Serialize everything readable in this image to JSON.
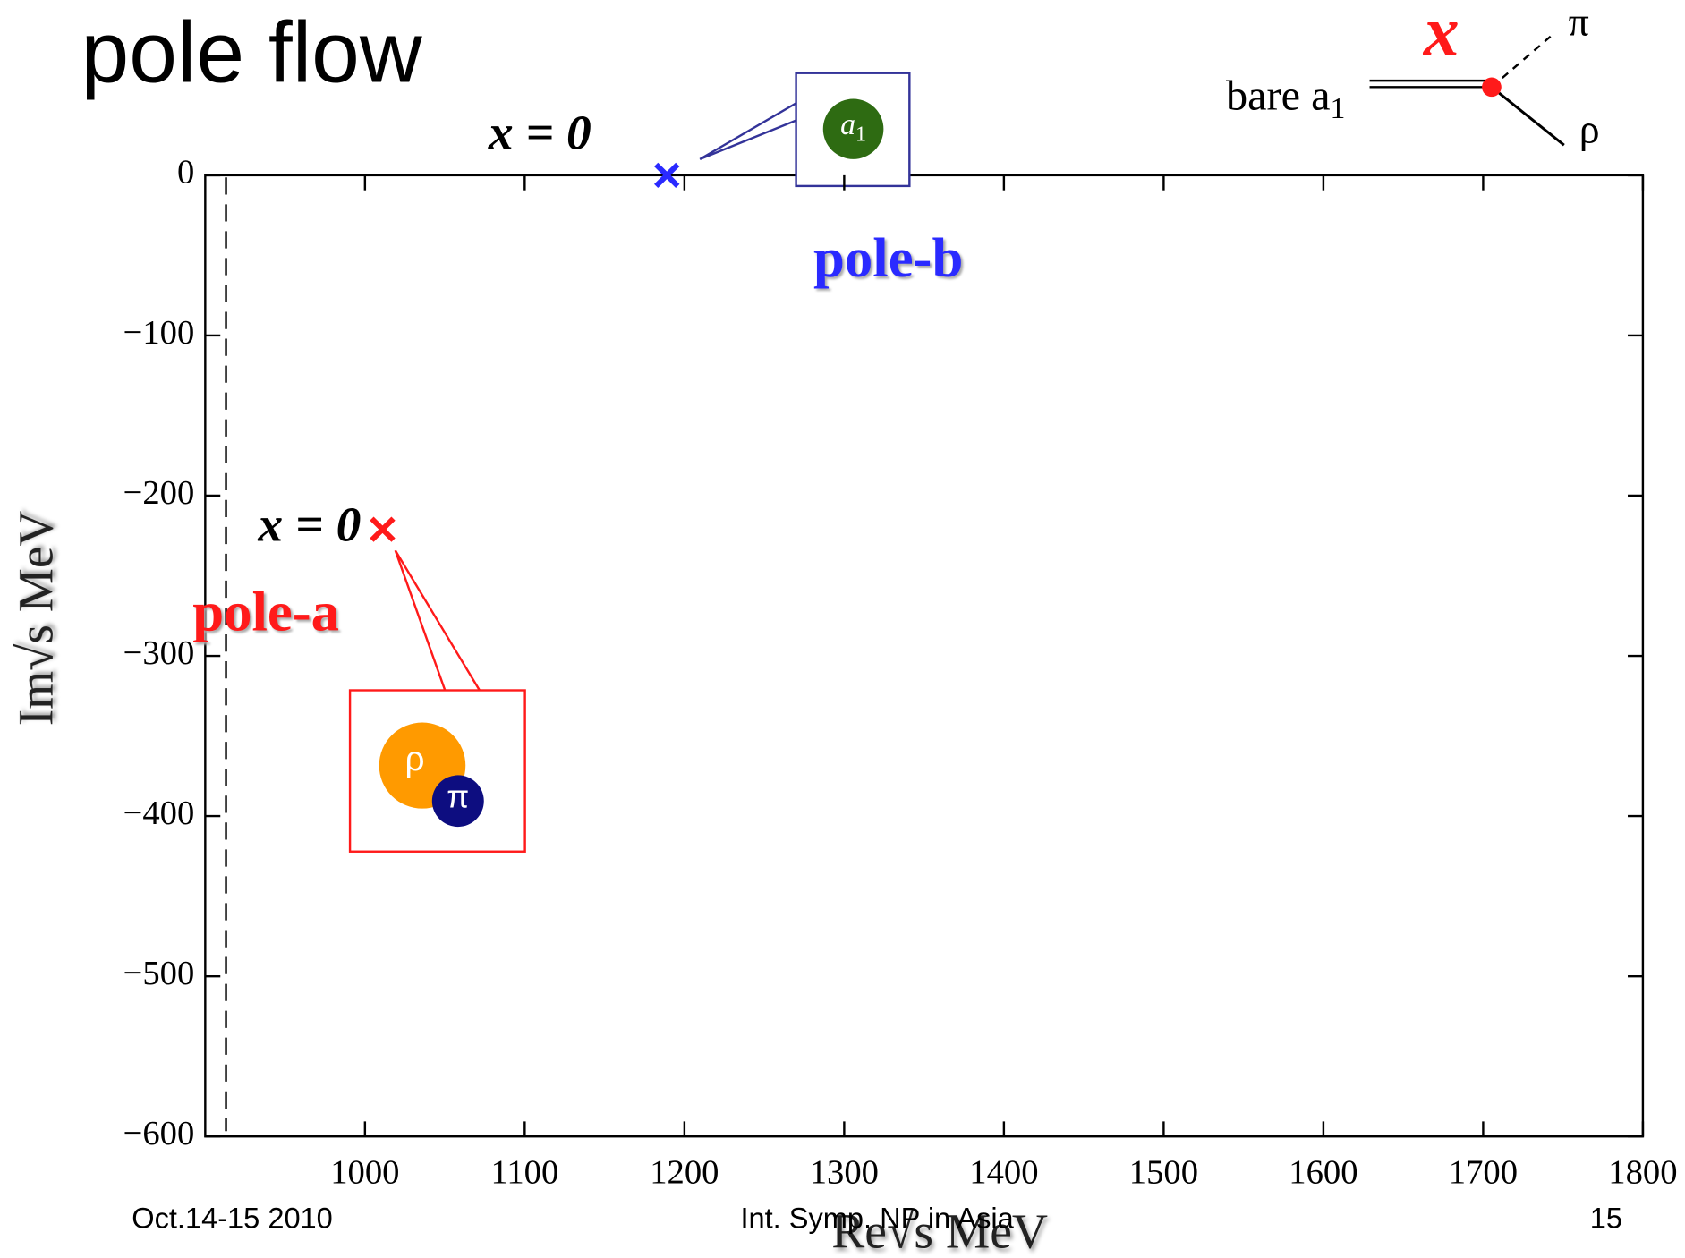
{
  "chart_data": {
    "type": "scatter",
    "title": "pole flow",
    "x_label": "Re√s  MeV",
    "y_label": "Im√s  MeV",
    "xlim": [
      900,
      1800
    ],
    "ylim": [
      -600,
      0
    ],
    "xticks": [
      1000,
      1100,
      1200,
      1300,
      1400,
      1500,
      1600,
      1700,
      1800
    ],
    "yticks": [
      0,
      {
        "value": -100,
        "label": "−100"
      },
      {
        "value": -200,
        "label": "−200"
      },
      {
        "value": -300,
        "label": "−300"
      },
      {
        "value": -400,
        "label": "−400"
      },
      {
        "value": -500,
        "label": "−500"
      },
      {
        "value": -600,
        "label": "−600"
      }
    ],
    "vline": 913,
    "series": [
      {
        "name": "pole-a",
        "color": "#ff1a1a",
        "x": [
          1011
        ],
        "values": [
          -221
        ],
        "annotation": "x = 0"
      },
      {
        "name": "pole-b",
        "color": "#2a2aff",
        "x": [
          1189
        ],
        "values": [
          0
        ],
        "annotation": "x = 0"
      }
    ]
  },
  "diagram": {
    "bare": "bare a",
    "bare_sub": "1",
    "pi": "π",
    "rho": "ρ",
    "coupling": "x"
  },
  "boxes": {
    "a1": "a",
    "a1_sub": "1",
    "rho": "ρ",
    "pi": "π"
  },
  "footer": {
    "date": "Oct.14-15 2010",
    "event": "Int. Symp. NP in Asia",
    "page": "15"
  }
}
